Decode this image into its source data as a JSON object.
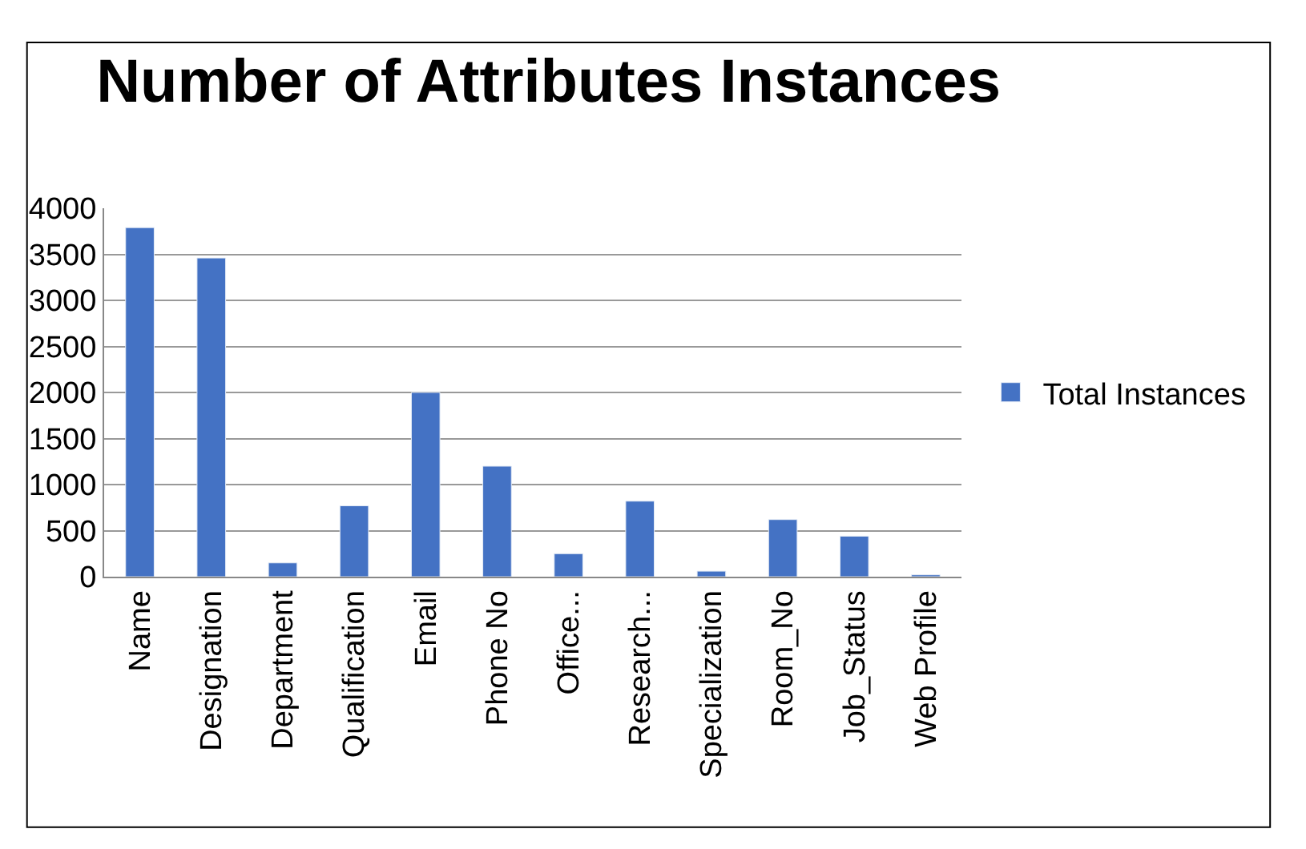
{
  "chart_data": {
    "type": "bar",
    "title": "Number of Attributes Instances",
    "categories": [
      "Name",
      "Designation",
      "Department",
      "Qualification",
      "Email",
      "Phone No",
      "Office...",
      "Research...",
      "Specialization",
      "Room_No",
      "Job_Status",
      "Web Profile"
    ],
    "series": [
      {
        "name": "Total Instances",
        "color": "#4472c4",
        "values": [
          3790,
          3460,
          150,
          770,
          2000,
          1200,
          250,
          820,
          60,
          620,
          440,
          20
        ]
      }
    ],
    "ylim": [
      0,
      4000
    ],
    "yticks": [
      0,
      500,
      1000,
      1500,
      2000,
      2500,
      3000,
      3500,
      4000
    ],
    "grid": "y",
    "legend": "right"
  }
}
